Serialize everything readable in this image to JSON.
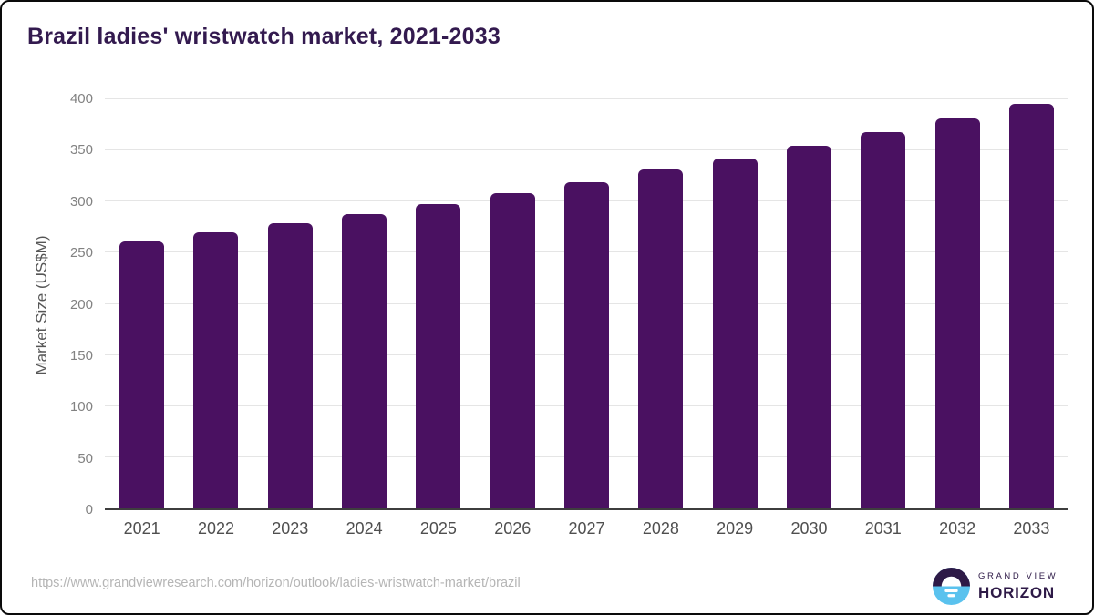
{
  "title": "Brazil ladies' wristwatch market, 2021-2033",
  "source_url": "https://www.grandviewresearch.com/horizon/outlook/ladies-wristwatch-market/brazil",
  "logo": {
    "top_text": "GRAND VIEW",
    "bottom_text": "HORIZON",
    "icon": "sunset-horizon-icon"
  },
  "colors": {
    "bar": "#4a1161",
    "title": "#331a4f",
    "grid": "#e5e5e5",
    "axis_line": "#3e3e3e",
    "y_tick_text": "#828282",
    "x_tick_text": "#4f4f4f",
    "y_axis_title_text": "#565656",
    "source_url_text": "#b5b5b5",
    "logo_purple": "#2e1a47",
    "logo_blue": "#5ac2ee"
  },
  "chart_data": {
    "type": "bar",
    "title": "Brazil ladies' wristwatch market, 2021-2033",
    "categories": [
      "2021",
      "2022",
      "2023",
      "2024",
      "2025",
      "2026",
      "2027",
      "2028",
      "2029",
      "2030",
      "2031",
      "2032",
      "2033"
    ],
    "values": [
      261,
      270,
      279,
      288,
      298,
      308,
      319,
      331,
      342,
      355,
      368,
      381,
      396
    ],
    "xlabel": "",
    "ylabel": "Market Size (US$M)",
    "ylim": [
      0,
      400
    ],
    "yticks": [
      0,
      50,
      100,
      150,
      200,
      250,
      300,
      350,
      400
    ],
    "grid": true,
    "legend": false,
    "bar_color": "#4a1161"
  }
}
